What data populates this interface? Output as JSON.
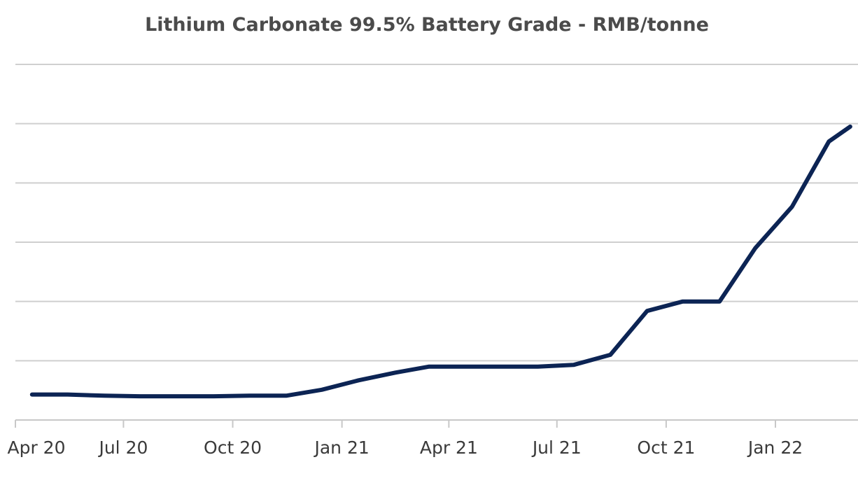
{
  "chart_data": {
    "type": "line",
    "title": "Lithium Carbonate 99.5% Battery Grade - RMB/tonne",
    "xlabel": "",
    "ylabel": "",
    "x_tick_labels": [
      "Apr 20",
      "Jul 20",
      "Oct 20",
      "Jan 21",
      "Apr 21",
      "Jul 21",
      "Oct 21",
      "Jan 22"
    ],
    "y_tick_labels_visible": false,
    "grid": true,
    "legend": "none",
    "ylim": [
      0,
      6
    ],
    "series": [
      {
        "color": "#0c2454",
        "points": [
          {
            "x": "2020-04-15",
            "y": 0.43
          },
          {
            "x": "2020-05-15",
            "y": 0.43
          },
          {
            "x": "2020-06-15",
            "y": 0.41
          },
          {
            "x": "2020-07-15",
            "y": 0.4
          },
          {
            "x": "2020-08-15",
            "y": 0.4
          },
          {
            "x": "2020-09-15",
            "y": 0.4
          },
          {
            "x": "2020-10-15",
            "y": 0.41
          },
          {
            "x": "2020-11-15",
            "y": 0.41
          },
          {
            "x": "2020-12-15",
            "y": 0.51
          },
          {
            "x": "2021-01-15",
            "y": 0.67
          },
          {
            "x": "2021-02-15",
            "y": 0.8
          },
          {
            "x": "2021-03-15",
            "y": 0.9
          },
          {
            "x": "2021-04-15",
            "y": 0.9
          },
          {
            "x": "2021-05-15",
            "y": 0.9
          },
          {
            "x": "2021-06-15",
            "y": 0.9
          },
          {
            "x": "2021-07-15",
            "y": 0.93
          },
          {
            "x": "2021-08-15",
            "y": 1.1
          },
          {
            "x": "2021-09-15",
            "y": 1.84
          },
          {
            "x": "2021-10-15",
            "y": 2.0
          },
          {
            "x": "2021-11-15",
            "y": 2.0
          },
          {
            "x": "2021-12-15",
            "y": 2.9
          },
          {
            "x": "2022-01-15",
            "y": 3.6
          },
          {
            "x": "2022-02-15",
            "y": 4.7
          },
          {
            "x": "2022-03-05",
            "y": 4.95
          }
        ]
      }
    ]
  }
}
